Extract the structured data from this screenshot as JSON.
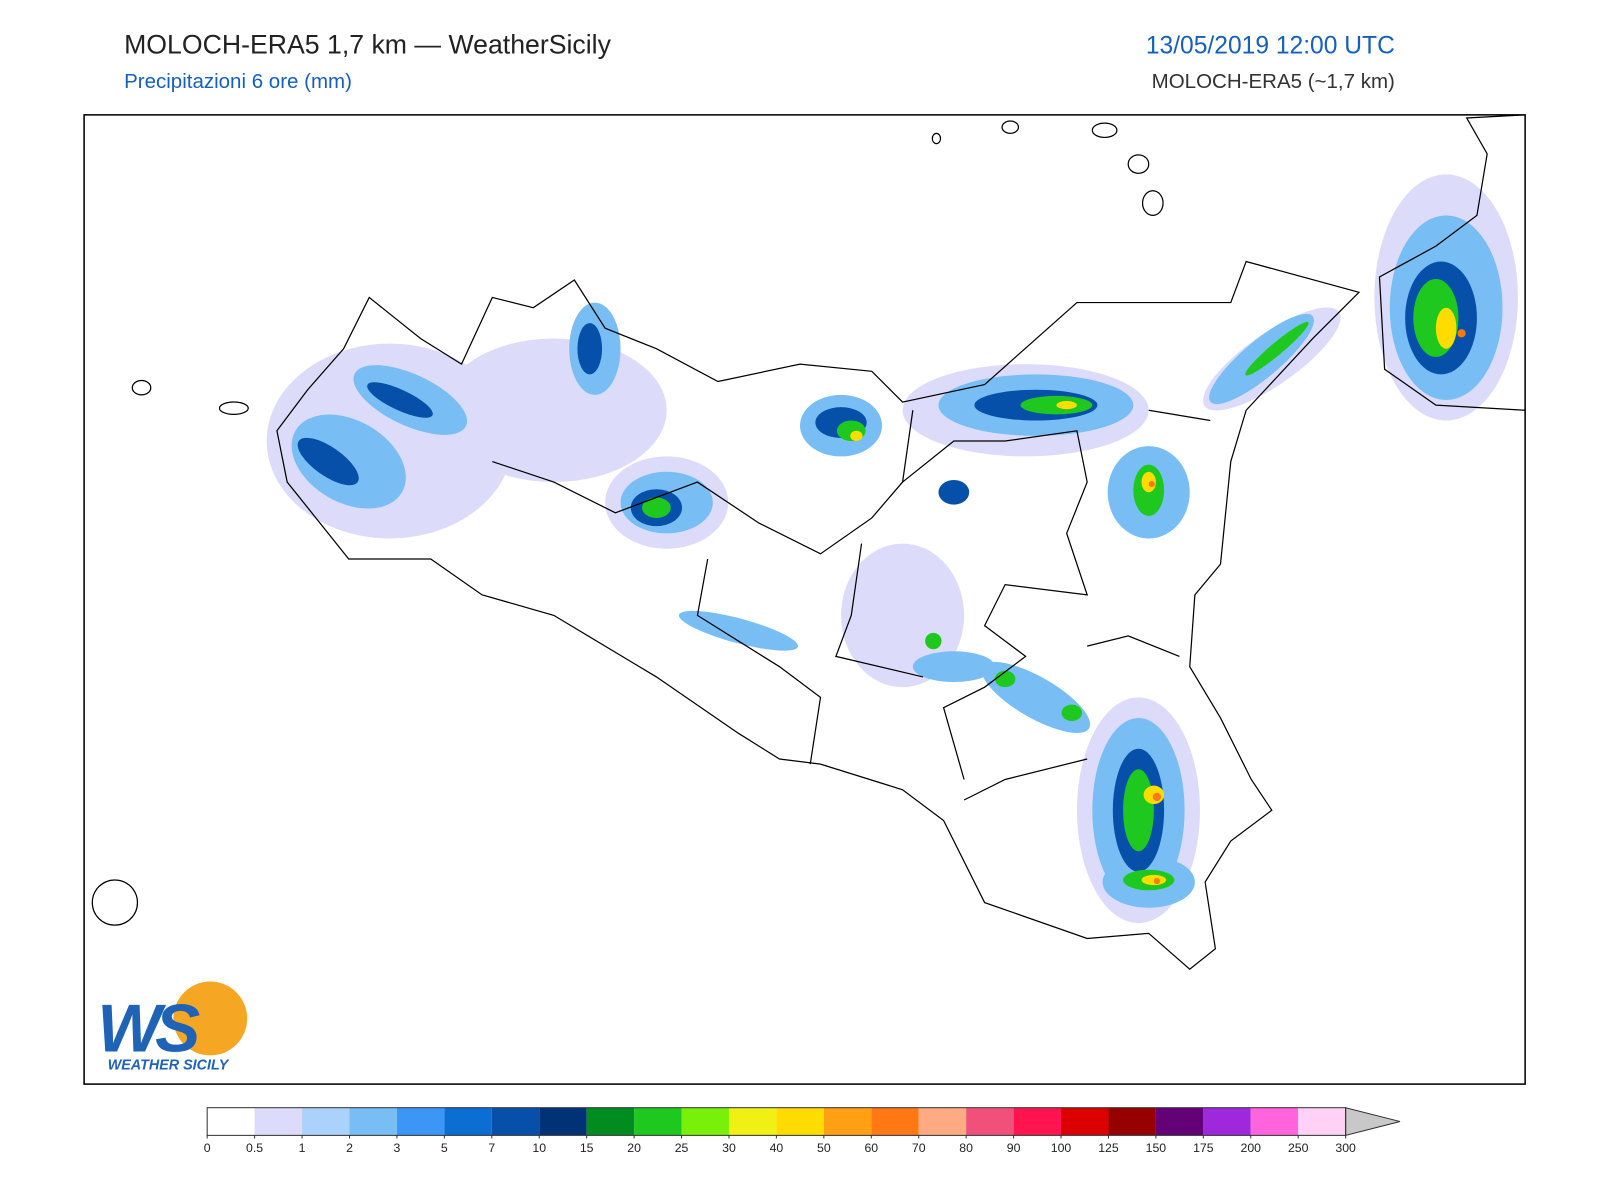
{
  "header": {
    "title": "MOLOCH-ERA5 1,7 km — WeatherSicily",
    "subtitle": "Precipitazioni 6 ore (mm)",
    "valid_time": "13/05/2019 12:00 UTC",
    "model": "MOLOCH-ERA5 (~1,7 km)"
  },
  "logo": {
    "letters": "WS",
    "name": "WEATHER SICILY"
  },
  "legend": {
    "ticks": [
      0,
      0.5,
      1,
      2,
      3,
      5,
      7,
      10,
      15,
      20,
      25,
      30,
      40,
      50,
      60,
      70,
      80,
      90,
      100,
      125,
      150,
      175,
      200,
      250,
      300
    ],
    "colors": [
      "#ffffff",
      "#dcdcfa",
      "#aad2fa",
      "#78bef5",
      "#3c96f5",
      "#0a6ed2",
      "#0650aa",
      "#003278",
      "#008c1e",
      "#1ec81e",
      "#78f00a",
      "#f0f014",
      "#ffdc00",
      "#ffa014",
      "#ff7814",
      "#ffaa82",
      "#f0507a",
      "#ff1450",
      "#dc0000",
      "#960000",
      "#640078",
      "#a028dc",
      "#ff64dc",
      "#ffd2f5"
    ],
    "extend_color": "#c8c8c8"
  }
}
